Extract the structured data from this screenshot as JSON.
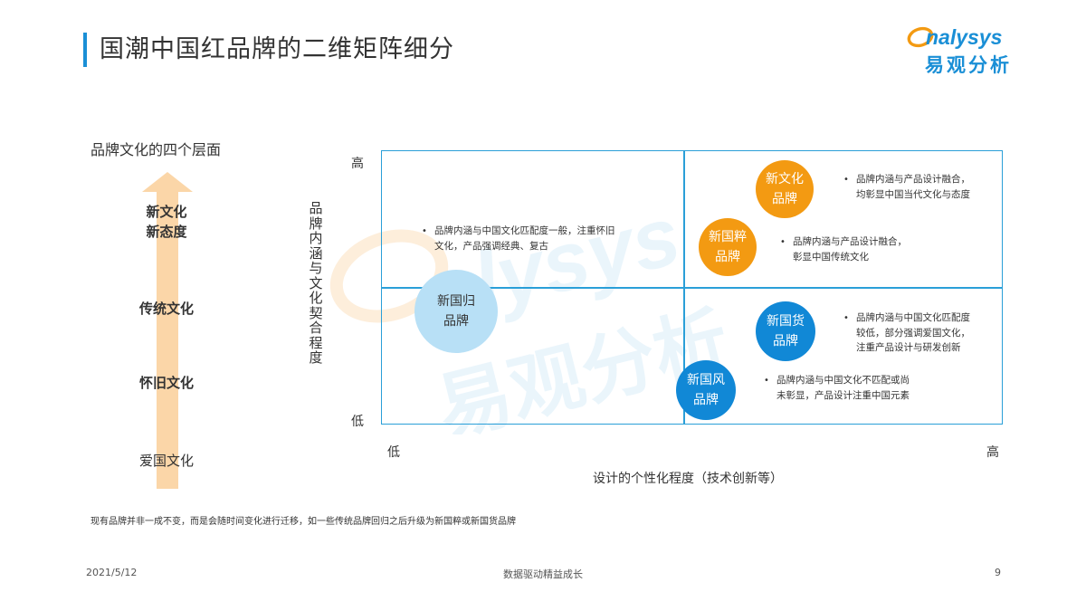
{
  "header": {
    "title": "国潮中国红品牌的二维矩阵细分",
    "logo_en": "analysys",
    "logo_cn": "易观分析"
  },
  "left_panel": {
    "heading": "品牌文化的四个层面",
    "layers": [
      "新文化",
      "新态度",
      "传统文化",
      "怀旧文化",
      "爱国文化"
    ]
  },
  "matrix": {
    "y_axis_title": "品牌内涵与文化契合程度",
    "y_high": "高",
    "y_low": "低",
    "x_axis_title": "设计的个性化程度（技术创新等）",
    "x_low": "低",
    "x_high": "高",
    "brands": {
      "new_culture": [
        "新文化",
        "品牌"
      ],
      "new_cui": [
        "新国粹",
        "品牌"
      ],
      "new_return": [
        "新国归",
        "品牌"
      ],
      "new_goods": [
        "新国货",
        "品牌"
      ],
      "new_wind": [
        "新国风",
        "品牌"
      ]
    },
    "bullets": {
      "new_culture": [
        "品牌内涵与产品设计融合，",
        "均彰显中国当代文化与态度"
      ],
      "new_cui": [
        "品牌内涵与产品设计融合，",
        "彰显中国传统文化"
      ],
      "new_return": [
        "品牌内涵与中国文化匹配度一般，注重怀旧",
        "文化，产品强调经典、复古"
      ],
      "new_goods": [
        "品牌内涵与中国文化匹配度",
        "较低，部分强调爱国文化，",
        "注重产品设计与研发创新"
      ],
      "new_wind": [
        "品牌内涵与中国文化不匹配或尚",
        "未彰显，产品设计注重中国元素"
      ]
    },
    "colors": {
      "axis_line": "#2a9fd8",
      "orange": "#f39a12",
      "blue": "#1188d6",
      "light_blue": "#b8e0f6",
      "arrow": "#fbd6a8"
    }
  },
  "footer": {
    "note": "现有品牌并非一成不变，而是会随时间变化进行迁移，如一些传统品牌回归之后升级为新国粹或新国货品牌",
    "date": "2021/5/12",
    "slogan": "数据驱动精益成长",
    "page": "9"
  }
}
